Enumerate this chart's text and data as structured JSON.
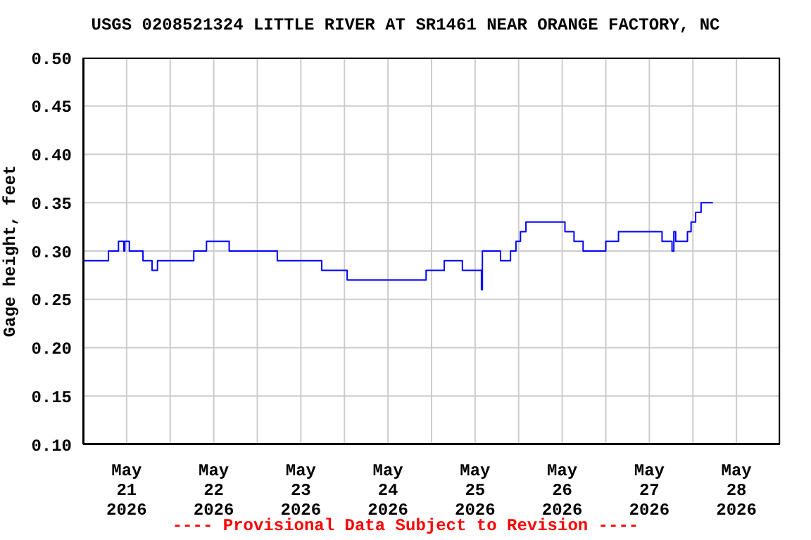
{
  "chart_data": {
    "type": "step",
    "title": "USGS 0208521324 LITTLE RIVER AT SR1461 NEAR ORANGE FACTORY, NC",
    "ylabel": "Gage height, feet",
    "annotations": [
      "---- Provisional Data Subject to Revision ----"
    ],
    "x": [
      "2026-05-21T00:00",
      "2026-05-21T07:00",
      "2026-05-21T09:45",
      "2026-05-21T11:15",
      "2026-05-21T11:30",
      "2026-05-21T12:45",
      "2026-05-21T16:30",
      "2026-05-21T19:00",
      "2026-05-21T20:30",
      "2026-05-22T06:30",
      "2026-05-22T10:00",
      "2026-05-22T16:15",
      "2026-05-23T05:30",
      "2026-05-23T17:45",
      "2026-05-24T00:45",
      "2026-05-24T22:30",
      "2026-05-25T03:30",
      "2026-05-25T08:30",
      "2026-05-25T13:45",
      "2026-05-25T14:00",
      "2026-05-25T19:00",
      "2026-05-25T21:45",
      "2026-05-25T23:15",
      "2026-05-26T00:30",
      "2026-05-26T02:00",
      "2026-05-26T12:45",
      "2026-05-26T15:15",
      "2026-05-26T17:45",
      "2026-05-27T00:00",
      "2026-05-27T03:30",
      "2026-05-27T15:30",
      "2026-05-27T18:15",
      "2026-05-27T18:45",
      "2026-05-27T19:15",
      "2026-05-27T22:30",
      "2026-05-27T23:30",
      "2026-05-28T00:45",
      "2026-05-28T02:15",
      "2026-05-28T05:30"
    ],
    "series": [
      {
        "color": "#0000ff",
        "values": [
          0.29,
          0.3,
          0.31,
          0.3,
          0.31,
          0.3,
          0.29,
          0.28,
          0.29,
          0.3,
          0.31,
          0.3,
          0.29,
          0.28,
          0.27,
          0.28,
          0.29,
          0.28,
          0.26,
          0.3,
          0.29,
          0.3,
          0.31,
          0.32,
          0.33,
          0.32,
          0.31,
          0.3,
          0.31,
          0.32,
          0.31,
          0.3,
          0.32,
          0.31,
          0.32,
          0.33,
          0.34,
          0.35,
          0.35
        ]
      }
    ],
    "xlim": [
      "2026-05-21T00:00",
      "2026-05-29T00:00"
    ],
    "xticks": [
      {
        "value": "2026-05-21T12:00",
        "label": "May\n21\n2026"
      },
      {
        "value": "2026-05-22T00:00",
        "label": null
      },
      {
        "value": "2026-05-22T12:00",
        "label": "May\n22\n2026"
      },
      {
        "value": "2026-05-23T00:00",
        "label": null
      },
      {
        "value": "2026-05-23T12:00",
        "label": "May\n23\n2026"
      },
      {
        "value": "2026-05-24T00:00",
        "label": null
      },
      {
        "value": "2026-05-24T12:00",
        "label": "May\n24\n2026"
      },
      {
        "value": "2026-05-25T00:00",
        "label": null
      },
      {
        "value": "2026-05-25T12:00",
        "label": "May\n25\n2026"
      },
      {
        "value": "2026-05-26T00:00",
        "label": null
      },
      {
        "value": "2026-05-26T12:00",
        "label": "May\n26\n2026"
      },
      {
        "value": "2026-05-27T00:00",
        "label": null
      },
      {
        "value": "2026-05-27T12:00",
        "label": "May\n27\n2026"
      },
      {
        "value": "2026-05-28T00:00",
        "label": null
      },
      {
        "value": "2026-05-28T12:00",
        "label": "May\n28\n2026"
      }
    ],
    "ylim": [
      0.1,
      0.5
    ],
    "yticks": [
      {
        "value": 0.1,
        "label": "0.10"
      },
      {
        "value": 0.15,
        "label": "0.15"
      },
      {
        "value": 0.2,
        "label": "0.20"
      },
      {
        "value": 0.25,
        "label": "0.25"
      },
      {
        "value": 0.3,
        "label": "0.30"
      },
      {
        "value": 0.35,
        "label": "0.35"
      },
      {
        "value": 0.4,
        "label": "0.40"
      },
      {
        "value": 0.45,
        "label": "0.45"
      },
      {
        "value": 0.5,
        "label": "0.50"
      }
    ],
    "grid": true,
    "legend": false,
    "marker": "none",
    "line_style": "solid"
  }
}
